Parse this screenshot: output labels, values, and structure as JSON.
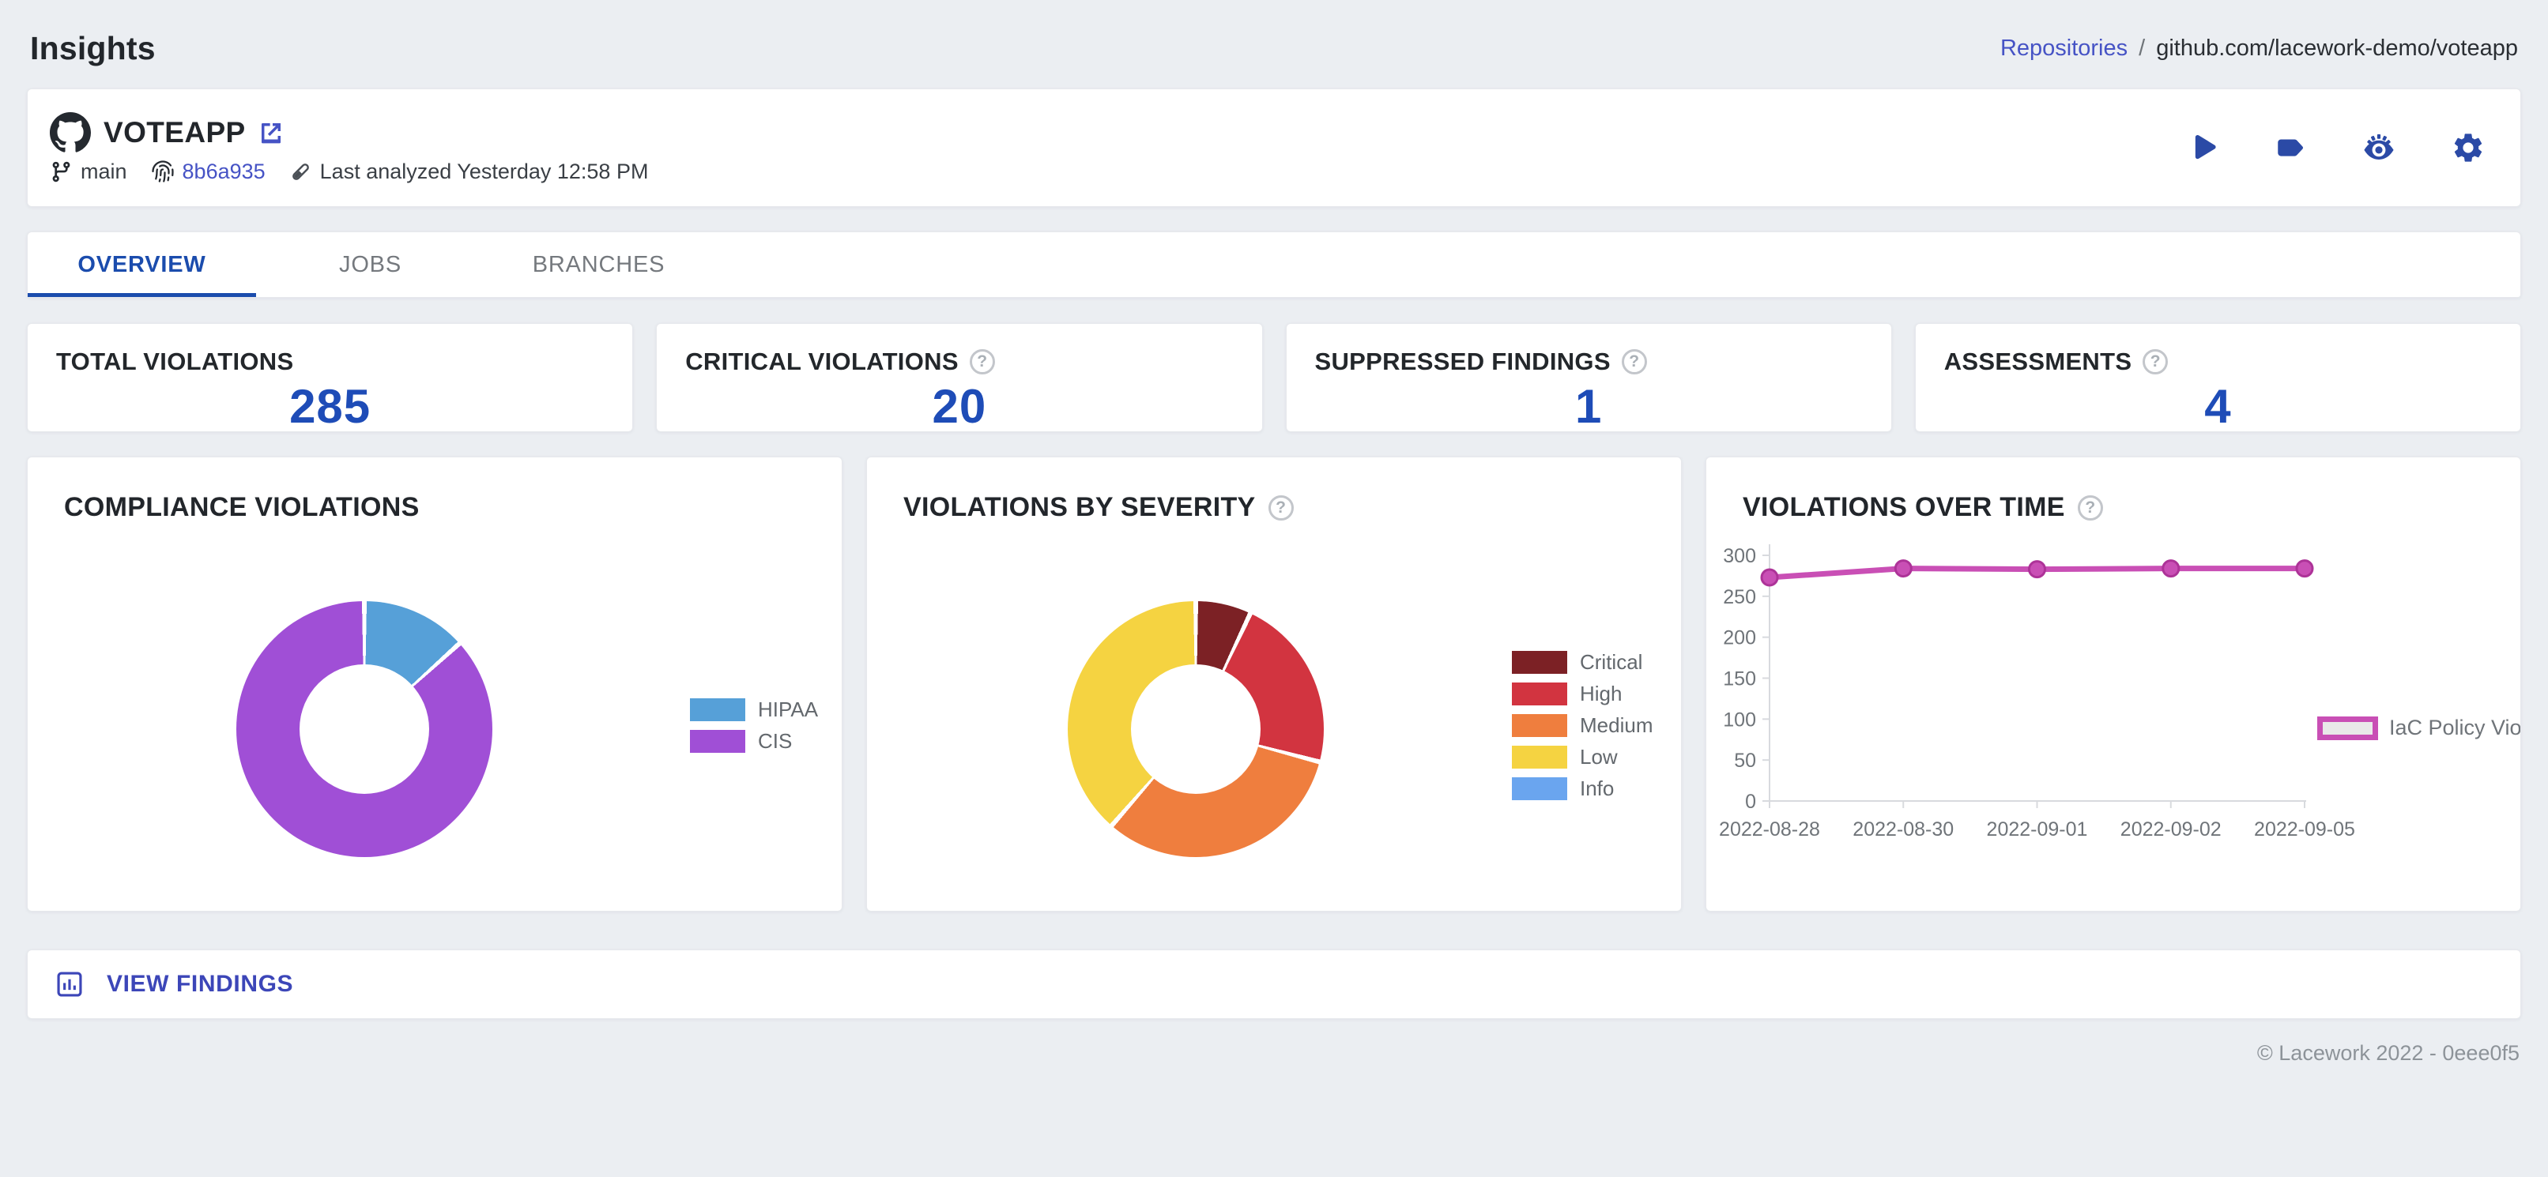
{
  "page": {
    "title": "Insights",
    "footer": "© Lacework 2022 - 0eee0f5"
  },
  "breadcrumb": {
    "link": "Repositories",
    "separator": "/",
    "current": "github.com/lacework-demo/voteapp"
  },
  "icons": {
    "help": "?"
  },
  "repo": {
    "name": "VOTEAPP",
    "branch": "main",
    "commit": "8b6a935",
    "last_analyzed": "Last analyzed Yesterday 12:58 PM"
  },
  "tabs": [
    {
      "label": "OVERVIEW",
      "active": true
    },
    {
      "label": "JOBS",
      "active": false
    },
    {
      "label": "BRANCHES",
      "active": false
    }
  ],
  "stats": [
    {
      "label": "TOTAL VIOLATIONS",
      "value": "285",
      "help": false
    },
    {
      "label": "CRITICAL VIOLATIONS",
      "value": "20",
      "help": true
    },
    {
      "label": "SUPPRESSED FINDINGS",
      "value": "1",
      "help": true
    },
    {
      "label": "ASSESSMENTS",
      "value": "4",
      "help": true
    }
  ],
  "actions_bar": {
    "view_findings": "VIEW FINDINGS"
  },
  "colors": {
    "accent_blue": "#1e4cb7",
    "link_indigo": "#4653c5",
    "icon_blue": "#2b4aa6",
    "tab_active": "#1b4cad",
    "page_background": "#ebeef2"
  },
  "chart_data": [
    {
      "type": "pie",
      "donut": true,
      "title": "COMPLIANCE VIOLATIONS",
      "legend_position": "right",
      "total": 285,
      "slices": [
        {
          "label": "HIPAA",
          "value": 38,
          "color": "#56a0d8"
        },
        {
          "label": "CIS",
          "value": 247,
          "color": "#a04fd6"
        }
      ]
    },
    {
      "type": "pie",
      "donut": true,
      "title": "VIOLATIONS BY SEVERITY",
      "legend_position": "right",
      "total": 285,
      "slices": [
        {
          "label": "Critical",
          "value": 20,
          "color": "#7c2125"
        },
        {
          "label": "High",
          "value": 63,
          "color": "#d23440"
        },
        {
          "label": "Medium",
          "value": 92,
          "color": "#ef7e3e"
        },
        {
          "label": "Low",
          "value": 110,
          "color": "#f5d341"
        },
        {
          "label": "Info",
          "value": 0,
          "color": "#6aa5ef"
        }
      ]
    },
    {
      "type": "line",
      "title": "VIOLATIONS OVER TIME",
      "x": [
        "2022-08-28",
        "2022-08-30",
        "2022-09-01",
        "2022-09-02",
        "2022-09-05"
      ],
      "series": [
        {
          "name": "IaC Policy Viola",
          "color": "#c94fb5",
          "values": [
            273,
            284,
            283,
            284,
            284
          ]
        }
      ],
      "ylim": [
        0,
        300
      ],
      "yticks": [
        0,
        50,
        100,
        150,
        200,
        250,
        300
      ],
      "grid": false,
      "legend_position": "right"
    }
  ]
}
